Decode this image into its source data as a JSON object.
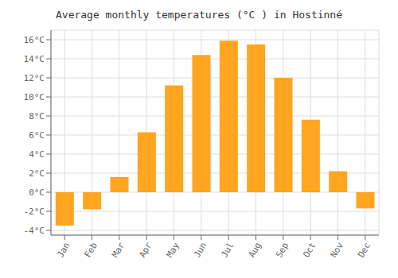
{
  "chart_data": {
    "type": "bar",
    "title": "Average monthly temperatures (°C ) in Hostinné",
    "categories": [
      "Jan",
      "Feb",
      "Mar",
      "Apr",
      "May",
      "Jun",
      "Jul",
      "Aug",
      "Sep",
      "Oct",
      "Nov",
      "Dec"
    ],
    "values": [
      -3.5,
      -1.8,
      1.6,
      6.3,
      11.2,
      14.4,
      15.9,
      15.5,
      12.0,
      7.6,
      2.2,
      -1.7
    ],
    "color": "#FFA520",
    "ylim": [
      -4.5,
      17
    ],
    "yticks": [
      {
        "value": -4,
        "label": "-4°C"
      },
      {
        "value": -2,
        "label": "-2°C"
      },
      {
        "value": 0,
        "label": "0°C"
      },
      {
        "value": 2,
        "label": "2°C"
      },
      {
        "value": 4,
        "label": "4°C"
      },
      {
        "value": 6,
        "label": "6°C"
      },
      {
        "value": 8,
        "label": "8°C"
      },
      {
        "value": 10,
        "label": "10°C"
      },
      {
        "value": 12,
        "label": "12°C"
      },
      {
        "value": 14,
        "label": "14°C"
      },
      {
        "value": 16,
        "label": "16°C"
      }
    ],
    "grid": true
  }
}
